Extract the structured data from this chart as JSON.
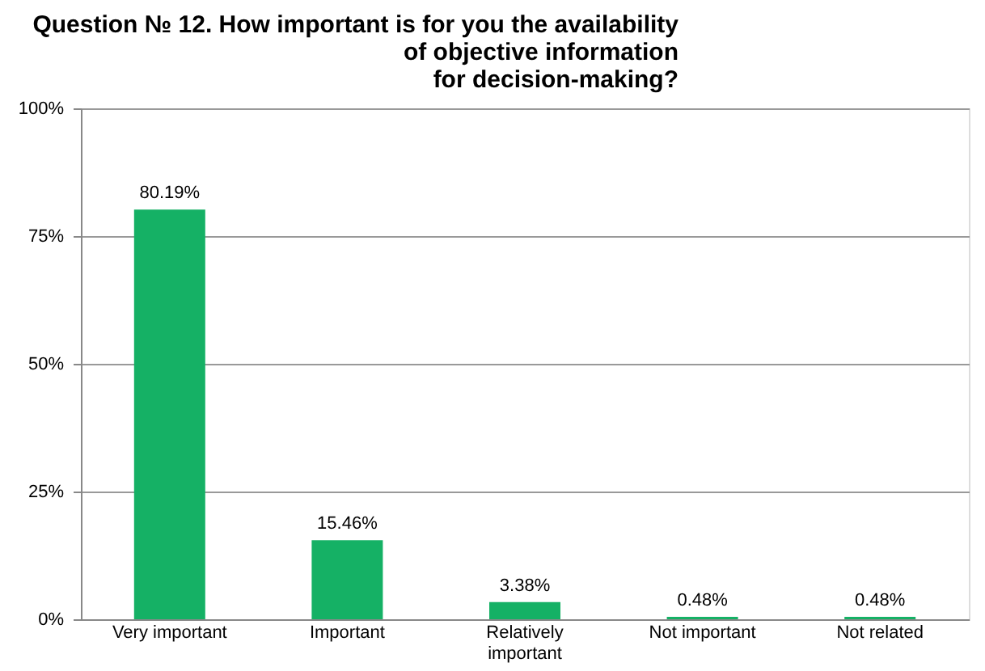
{
  "chart_data": {
    "type": "bar",
    "title": "Question № 12. How important is for you the availability\nof objective information\nfor decision-making?",
    "categories": [
      "Very important",
      "Important",
      "Relatively important",
      "Not important",
      "Not related"
    ],
    "values": [
      80.19,
      15.46,
      3.38,
      0.48,
      0.48
    ],
    "value_labels": [
      "80.19%",
      "15.46%",
      "3.38%",
      "0.48%",
      "0.48%"
    ],
    "color": "#15b165",
    "ylim": [
      0,
      100
    ],
    "yticks": [
      {
        "value": 0,
        "label": "0%"
      },
      {
        "value": 25,
        "label": "25%"
      },
      {
        "value": 50,
        "label": "50%"
      },
      {
        "value": 75,
        "label": "75%"
      },
      {
        "value": 100,
        "label": "100%"
      }
    ],
    "grid": "y"
  }
}
